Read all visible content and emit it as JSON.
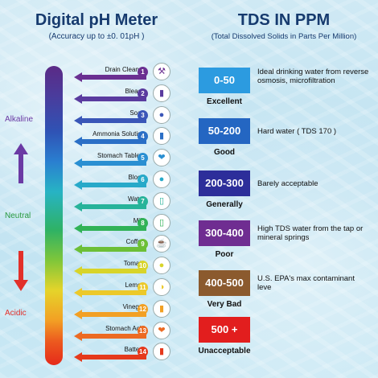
{
  "ph": {
    "title": "Digital pH Meter",
    "subtitle": "(Accuracy up to  ±0. 01pH )",
    "alkaline_label": "Alkaline",
    "neutral_label": "Neutral",
    "acidic_label": "Acidic",
    "items": [
      {
        "label": "Drain Cleaner",
        "num": "1",
        "color": "#6a2f91",
        "icon": "drain-icon"
      },
      {
        "label": "Bleach",
        "num": "2",
        "color": "#5a3b9f",
        "icon": "bleach-bottle-icon"
      },
      {
        "label": "Soap",
        "num": "3",
        "color": "#3a56b8",
        "icon": "soap-icon"
      },
      {
        "label": "Ammonia Solution",
        "num": "4",
        "color": "#2b6fc6",
        "icon": "ammonia-bottle-icon"
      },
      {
        "label": "Stomach Tablets",
        "num": "5",
        "color": "#2a8fd2",
        "icon": "stomach-icon"
      },
      {
        "label": "Blood",
        "num": "6",
        "color": "#27a9c9",
        "icon": "blood-cells-icon"
      },
      {
        "label": "Water",
        "num": "7",
        "color": "#27b39a",
        "icon": "water-glass-icon"
      },
      {
        "label": "Milk",
        "num": "8",
        "color": "#30b257",
        "icon": "milk-glass-icon"
      },
      {
        "label": "Coffee",
        "num": "9",
        "color": "#6cbf36",
        "icon": "coffee-cup-icon"
      },
      {
        "label": "Tomato",
        "num": "10",
        "color": "#d8d42a",
        "icon": "tomato-icon"
      },
      {
        "label": "Lemon",
        "num": "11",
        "color": "#ecc92a",
        "icon": "lemon-icon"
      },
      {
        "label": "Vinegar",
        "num": "12",
        "color": "#f2a024",
        "icon": "vinegar-bottle-icon"
      },
      {
        "label": "Stomach Acid",
        "num": "13",
        "color": "#ec6a22",
        "icon": "stomach-acid-icon"
      },
      {
        "label": "Battery",
        "num": "14",
        "color": "#e5391c",
        "icon": "battery-icon"
      }
    ]
  },
  "tds": {
    "title": "TDS IN PPM",
    "subtitle": "(Total Dissolved Solids in Parts Per Million)",
    "levels": [
      {
        "range": "0-50",
        "rating": "Excellent",
        "desc": "Ideal drinking water from reverse osmosis, microfiltration",
        "color": "#2c9be0"
      },
      {
        "range": "50-200",
        "rating": "Good",
        "desc": "Hard water ( TDS 170 )",
        "color": "#2466c2"
      },
      {
        "range": "200-300",
        "rating": "Generally",
        "desc": "Barely acceptable",
        "color": "#2d2e9a"
      },
      {
        "range": "300-400",
        "rating": "Poor",
        "desc": "High TDS water from the tap or mineral springs",
        "color": "#6f2d91"
      },
      {
        "range": "400-500",
        "rating": "Very Bad",
        "desc": "U.S. EPA's max contaminant leve",
        "color": "#8b5a2e"
      },
      {
        "range": "500 +",
        "rating": "Unacceptable",
        "desc": "",
        "color": "#e21e1e"
      }
    ]
  }
}
